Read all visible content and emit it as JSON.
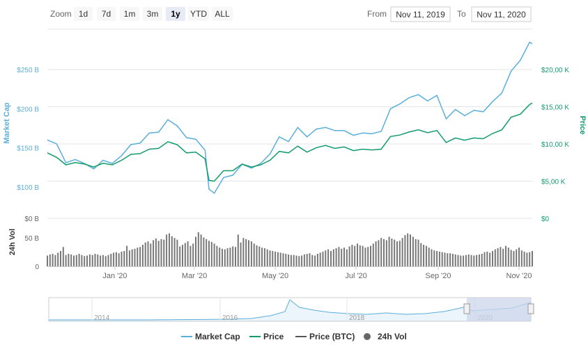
{
  "toolbar": {
    "zoom_label": "Zoom",
    "zoom_buttons": [
      "1d",
      "7d",
      "1m",
      "3m",
      "1y",
      "YTD",
      "ALL"
    ],
    "active_zoom": "1y",
    "from_label": "From",
    "from_value": "Nov 11, 2019",
    "to_label": "To",
    "to_value": "Nov 11, 2020"
  },
  "colors": {
    "market_cap": "#5aaedc",
    "price": "#119b6b",
    "volume": "#777777",
    "navigator_fill": "#ccd6eb",
    "grid": "#e6e6e6"
  },
  "legend": [
    {
      "name": "Market Cap",
      "marker": "line",
      "color": "#5aaedc"
    },
    {
      "name": "Price",
      "marker": "line",
      "color": "#119b6b"
    },
    {
      "name": "Price (BTC)",
      "marker": "line",
      "color": "#555555"
    },
    {
      "name": "24h Vol",
      "marker": "circle",
      "color": "#666666"
    }
  ],
  "chart_data": {
    "type": "line",
    "x_range": [
      "2019-11-11",
      "2020-11-11"
    ],
    "x_ticks": [
      {
        "label": "Jan '20",
        "date": "2020-01-01"
      },
      {
        "label": "Mar '20",
        "date": "2020-03-01"
      },
      {
        "label": "May '20",
        "date": "2020-05-01"
      },
      {
        "label": "Jul '20",
        "date": "2020-07-01"
      },
      {
        "label": "Sep '20",
        "date": "2020-09-01"
      },
      {
        "label": "Nov '20",
        "date": "2020-11-01"
      }
    ],
    "left_axis": {
      "label": "Market Cap",
      "ylim_billions": [
        75,
        300
      ],
      "ticks": [
        {
          "value": 100,
          "label": "$100 B"
        },
        {
          "value": 150,
          "label": "$150 B"
        },
        {
          "value": 200,
          "label": "$200 B"
        },
        {
          "value": 250,
          "label": "$250 B"
        }
      ]
    },
    "right_axis": {
      "label": "Price",
      "ticks": [
        {
          "value": 0,
          "label": "$0"
        },
        {
          "value": 5000,
          "label": "$5,00 K"
        },
        {
          "value": 10000,
          "label": "$10,00 K"
        },
        {
          "value": 15000,
          "label": "$15,00 K"
        },
        {
          "value": 20000,
          "label": "$20,00 K"
        }
      ]
    },
    "volume_axis": {
      "label": "24h Vol",
      "ylim_billions": [
        0,
        60
      ],
      "ticks": [
        {
          "value": 0,
          "label": "0"
        },
        {
          "value": 50,
          "label": "50 B"
        },
        {
          "value": 100,
          "label": "$0 B"
        }
      ]
    },
    "series": [
      {
        "name": "Market Cap",
        "unit": "B USD",
        "points": [
          [
            "2019-11-11",
            161
          ],
          [
            "2019-11-18",
            156
          ],
          [
            "2019-11-25",
            132
          ],
          [
            "2019-12-02",
            136
          ],
          [
            "2019-12-09",
            131
          ],
          [
            "2019-12-16",
            124
          ],
          [
            "2019-12-23",
            135
          ],
          [
            "2019-12-30",
            131
          ],
          [
            "2020-01-06",
            141
          ],
          [
            "2020-01-13",
            155
          ],
          [
            "2020-01-20",
            157
          ],
          [
            "2020-01-27",
            170
          ],
          [
            "2020-02-03",
            171
          ],
          [
            "2020-02-10",
            187
          ],
          [
            "2020-02-17",
            179
          ],
          [
            "2020-02-24",
            164
          ],
          [
            "2020-03-02",
            162
          ],
          [
            "2020-03-09",
            148
          ],
          [
            "2020-03-12",
            98
          ],
          [
            "2020-03-16",
            93
          ],
          [
            "2020-03-23",
            113
          ],
          [
            "2020-03-30",
            116
          ],
          [
            "2020-04-06",
            130
          ],
          [
            "2020-04-13",
            125
          ],
          [
            "2020-04-20",
            131
          ],
          [
            "2020-04-27",
            143
          ],
          [
            "2020-05-04",
            165
          ],
          [
            "2020-05-11",
            159
          ],
          [
            "2020-05-18",
            177
          ],
          [
            "2020-05-25",
            165
          ],
          [
            "2020-06-01",
            175
          ],
          [
            "2020-06-08",
            177
          ],
          [
            "2020-06-15",
            173
          ],
          [
            "2020-06-22",
            173
          ],
          [
            "2020-06-29",
            167
          ],
          [
            "2020-07-06",
            170
          ],
          [
            "2020-07-13",
            169
          ],
          [
            "2020-07-20",
            172
          ],
          [
            "2020-07-27",
            201
          ],
          [
            "2020-08-03",
            207
          ],
          [
            "2020-08-10",
            215
          ],
          [
            "2020-08-17",
            219
          ],
          [
            "2020-08-24",
            211
          ],
          [
            "2020-08-31",
            218
          ],
          [
            "2020-09-07",
            188
          ],
          [
            "2020-09-14",
            200
          ],
          [
            "2020-09-21",
            192
          ],
          [
            "2020-09-28",
            199
          ],
          [
            "2020-10-05",
            197
          ],
          [
            "2020-10-12",
            210
          ],
          [
            "2020-10-19",
            221
          ],
          [
            "2020-10-26",
            249
          ],
          [
            "2020-11-02",
            263
          ],
          [
            "2020-11-09",
            286
          ],
          [
            "2020-11-11",
            284
          ]
        ]
      },
      {
        "name": "Price",
        "unit": "USD",
        "points": [
          [
            "2019-11-11",
            8800
          ],
          [
            "2019-11-18",
            8200
          ],
          [
            "2019-11-25",
            7200
          ],
          [
            "2019-12-02",
            7500
          ],
          [
            "2019-12-09",
            7300
          ],
          [
            "2019-12-16",
            6900
          ],
          [
            "2019-12-23",
            7400
          ],
          [
            "2019-12-30",
            7200
          ],
          [
            "2020-01-06",
            7800
          ],
          [
            "2020-01-13",
            8600
          ],
          [
            "2020-01-20",
            8700
          ],
          [
            "2020-01-27",
            9300
          ],
          [
            "2020-02-03",
            9400
          ],
          [
            "2020-02-10",
            10300
          ],
          [
            "2020-02-17",
            9900
          ],
          [
            "2020-02-24",
            8800
          ],
          [
            "2020-03-02",
            8900
          ],
          [
            "2020-03-09",
            8000
          ],
          [
            "2020-03-12",
            5100
          ],
          [
            "2020-03-16",
            5000
          ],
          [
            "2020-03-23",
            6400
          ],
          [
            "2020-03-30",
            6400
          ],
          [
            "2020-04-06",
            7300
          ],
          [
            "2020-04-13",
            6900
          ],
          [
            "2020-04-20",
            7200
          ],
          [
            "2020-04-27",
            7800
          ],
          [
            "2020-05-04",
            9000
          ],
          [
            "2020-05-11",
            8800
          ],
          [
            "2020-05-18",
            9700
          ],
          [
            "2020-05-25",
            8900
          ],
          [
            "2020-06-01",
            9500
          ],
          [
            "2020-06-08",
            9800
          ],
          [
            "2020-06-15",
            9400
          ],
          [
            "2020-06-22",
            9600
          ],
          [
            "2020-06-29",
            9100
          ],
          [
            "2020-07-06",
            9300
          ],
          [
            "2020-07-13",
            9200
          ],
          [
            "2020-07-20",
            9300
          ],
          [
            "2020-07-27",
            11000
          ],
          [
            "2020-08-03",
            11200
          ],
          [
            "2020-08-10",
            11600
          ],
          [
            "2020-08-17",
            11900
          ],
          [
            "2020-08-24",
            11500
          ],
          [
            "2020-08-31",
            11800
          ],
          [
            "2020-09-07",
            10200
          ],
          [
            "2020-09-14",
            10800
          ],
          [
            "2020-09-21",
            10500
          ],
          [
            "2020-09-28",
            10800
          ],
          [
            "2020-10-05",
            10700
          ],
          [
            "2020-10-12",
            11400
          ],
          [
            "2020-10-19",
            11900
          ],
          [
            "2020-10-26",
            13600
          ],
          [
            "2020-11-02",
            14000
          ],
          [
            "2020-11-09",
            15300
          ],
          [
            "2020-11-11",
            15500
          ]
        ]
      },
      {
        "name": "24h Vol",
        "unit": "B USD",
        "bar_interval_days": 2,
        "values": [
          19,
          21,
          22,
          20,
          24,
          27,
          34,
          20,
          22,
          21,
          19,
          20,
          22,
          20,
          18,
          19,
          21,
          20,
          22,
          21,
          19,
          20,
          18,
          20,
          22,
          24,
          25,
          23,
          26,
          27,
          36,
          28,
          30,
          31,
          33,
          34,
          38,
          42,
          44,
          40,
          46,
          49,
          45,
          48,
          47,
          56,
          58,
          53,
          50,
          47,
          35,
          38,
          41,
          44,
          36,
          40,
          52,
          60,
          56,
          51,
          48,
          45,
          43,
          40,
          36,
          33,
          31,
          30,
          32,
          33,
          35,
          34,
          56,
          42,
          50,
          48,
          46,
          44,
          40,
          37,
          35,
          33,
          32,
          30,
          28,
          27,
          26,
          25,
          24,
          23,
          22,
          21,
          20,
          20,
          19,
          18,
          19,
          21,
          22,
          23,
          20,
          19,
          22,
          24,
          26,
          28,
          30,
          27,
          30,
          32,
          34,
          31,
          33,
          30,
          35,
          38,
          36,
          40,
          37,
          36,
          33,
          34,
          36,
          40,
          44,
          46,
          50,
          48,
          46,
          52,
          49,
          47,
          44,
          45,
          50,
          55,
          58,
          56,
          52,
          48,
          47,
          41,
          38,
          36,
          33,
          30,
          28,
          27,
          26,
          25,
          24,
          23,
          23,
          22,
          21,
          20,
          19,
          19,
          20,
          21,
          20,
          19,
          20,
          21,
          22,
          25,
          26,
          24,
          27,
          30,
          32,
          34,
          31,
          36,
          33,
          29,
          27,
          30,
          33,
          28,
          26,
          24,
          25,
          27,
          29,
          31,
          34,
          36,
          40,
          44,
          48,
          50,
          52,
          55,
          58,
          48,
          52,
          45,
          46,
          40
        ]
      }
    ],
    "navigator": {
      "x_labels": [
        "2014",
        "2016",
        "2018",
        "2020"
      ],
      "selected_range": [
        "2019-11-11",
        "2020-11-11"
      ]
    }
  }
}
